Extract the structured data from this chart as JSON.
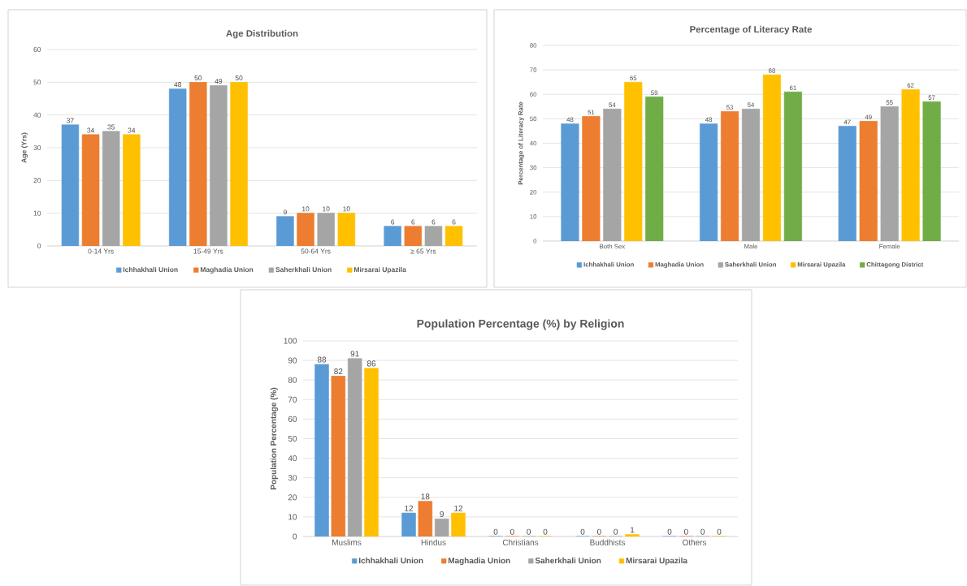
{
  "chart_data": [
    {
      "type": "bar",
      "title": "Age Distribution",
      "ylabel": "Age (Yrs)",
      "categories": [
        "0-14 Yrs",
        "15-49 Yrs",
        "50-64 Yrs",
        "≥ 65 Yrs"
      ],
      "series": [
        {
          "name": "Ichhakhali Union",
          "color": "#5b9bd5",
          "values": [
            37,
            48,
            9,
            6
          ]
        },
        {
          "name": "Maghadia Union",
          "color": "#ed7d31",
          "values": [
            34,
            50,
            10,
            6
          ]
        },
        {
          "name": "Saherkhali Union",
          "color": "#a5a5a5",
          "values": [
            35,
            49,
            10,
            6
          ]
        },
        {
          "name": "Mirsarai Upazila",
          "color": "#ffc000",
          "values": [
            34,
            50,
            10,
            6
          ]
        }
      ],
      "ylim": [
        0,
        60
      ],
      "yticks": [
        0,
        10,
        20,
        30,
        40,
        50,
        60
      ],
      "grid": "y",
      "legend": "bottom",
      "data_labels": true
    },
    {
      "type": "bar",
      "title": "Percentage of Literacy Rate",
      "ylabel": "Percentage of Literacy Rate",
      "categories": [
        "Both Sex",
        "Male",
        "Female"
      ],
      "series": [
        {
          "name": "Ichhakhali Union",
          "color": "#5b9bd5",
          "values": [
            48,
            48,
            47
          ]
        },
        {
          "name": "Maghadia Union",
          "color": "#ed7d31",
          "values": [
            51,
            53,
            49
          ]
        },
        {
          "name": "Saherkhali Union",
          "color": "#a5a5a5",
          "values": [
            54,
            54,
            55
          ]
        },
        {
          "name": "Mirsarai Upazila",
          "color": "#ffc000",
          "values": [
            65,
            68,
            62
          ]
        },
        {
          "name": "Chittagong District",
          "color": "#70ad47",
          "values": [
            59,
            61,
            57
          ]
        }
      ],
      "ylim": [
        0,
        80
      ],
      "yticks": [
        0,
        10,
        20,
        30,
        40,
        50,
        60,
        70,
        80
      ],
      "grid": "y",
      "legend": "bottom",
      "data_labels": true
    },
    {
      "type": "bar",
      "title": "Population Percentage (%) by Religion",
      "ylabel": "Population Percentage (%)",
      "categories": [
        "Muslims",
        "Hindus",
        "Christians",
        "Buddhists",
        "Others"
      ],
      "series": [
        {
          "name": "Ichhakhali Union",
          "color": "#5b9bd5",
          "values": [
            88,
            12,
            0,
            0,
            0
          ]
        },
        {
          "name": "Maghadia Union",
          "color": "#ed7d31",
          "values": [
            82,
            18,
            0,
            0,
            0
          ]
        },
        {
          "name": "Saherkhali Union",
          "color": "#a5a5a5",
          "values": [
            91,
            9,
            0,
            0,
            0
          ]
        },
        {
          "name": "Mirsarai Upazila",
          "color": "#ffc000",
          "values": [
            86,
            12,
            0,
            1,
            0
          ]
        }
      ],
      "ylim": [
        0,
        100
      ],
      "yticks": [
        0,
        10,
        20,
        30,
        40,
        50,
        60,
        70,
        80,
        90,
        100
      ],
      "grid": "y",
      "legend": "bottom",
      "data_labels": true
    }
  ]
}
